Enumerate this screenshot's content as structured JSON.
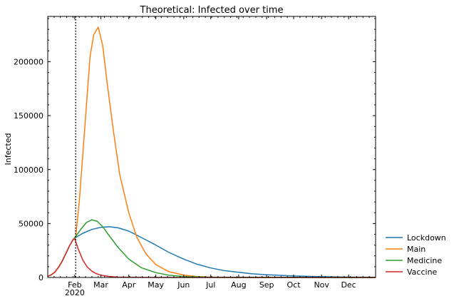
{
  "chart_data": {
    "type": "line",
    "title": "Theoretical: Infected over time",
    "xlabel": "",
    "ylabel": "Infected",
    "x_type": "date",
    "xlim": [
      "2020-01-02",
      "2020-12-31"
    ],
    "ylim": [
      0,
      242000
    ],
    "yticks": [
      0,
      50000,
      100000,
      150000,
      200000
    ],
    "ytick_labels": [
      "0",
      "50000",
      "100000",
      "150000",
      "200000"
    ],
    "xticks": [
      {
        "date": "2020-02-01",
        "label": "Feb"
      },
      {
        "date": "2020-03-01",
        "label": "Mar"
      },
      {
        "date": "2020-04-01",
        "label": "Apr"
      },
      {
        "date": "2020-05-01",
        "label": "May"
      },
      {
        "date": "2020-06-01",
        "label": "Jun"
      },
      {
        "date": "2020-07-01",
        "label": "Jul"
      },
      {
        "date": "2020-08-01",
        "label": "Aug"
      },
      {
        "date": "2020-09-01",
        "label": "Sep"
      },
      {
        "date": "2020-10-01",
        "label": "Oct"
      },
      {
        "date": "2020-11-01",
        "label": "Nov"
      },
      {
        "date": "2020-12-01",
        "label": "Dec"
      }
    ],
    "year_label": {
      "date": "2020-02-01",
      "label": "2020"
    },
    "vline": {
      "date": "2020-02-02",
      "style": "dotted"
    },
    "grid": false,
    "legend_position": "outside right, bottom",
    "series": [
      {
        "name": "Lockdown",
        "color": "#1f77b4",
        "points": [
          [
            "2020-01-02",
            1000
          ],
          [
            "2020-01-06",
            2500
          ],
          [
            "2020-01-10",
            5000
          ],
          [
            "2020-01-14",
            9500
          ],
          [
            "2020-01-18",
            15000
          ],
          [
            "2020-01-22",
            22000
          ],
          [
            "2020-01-26",
            29000
          ],
          [
            "2020-01-30",
            35000
          ],
          [
            "2020-02-02",
            37000
          ],
          [
            "2020-02-10",
            41000
          ],
          [
            "2020-02-20",
            44500
          ],
          [
            "2020-03-01",
            46500
          ],
          [
            "2020-03-10",
            47000
          ],
          [
            "2020-03-20",
            46000
          ],
          [
            "2020-04-01",
            43000
          ],
          [
            "2020-04-15",
            37000
          ],
          [
            "2020-05-01",
            30000
          ],
          [
            "2020-05-15",
            23500
          ],
          [
            "2020-06-01",
            17000
          ],
          [
            "2020-06-15",
            12500
          ],
          [
            "2020-07-01",
            8800
          ],
          [
            "2020-07-15",
            6500
          ],
          [
            "2020-08-01",
            4800
          ],
          [
            "2020-08-15",
            3500
          ],
          [
            "2020-09-01",
            2500
          ],
          [
            "2020-10-01",
            1400
          ],
          [
            "2020-11-01",
            700
          ],
          [
            "2020-12-01",
            350
          ],
          [
            "2020-12-31",
            150
          ]
        ]
      },
      {
        "name": "Main",
        "color": "#ff7f0e",
        "points": [
          [
            "2020-01-02",
            1000
          ],
          [
            "2020-01-06",
            2500
          ],
          [
            "2020-01-10",
            5000
          ],
          [
            "2020-01-14",
            9500
          ],
          [
            "2020-01-18",
            15000
          ],
          [
            "2020-01-22",
            22000
          ],
          [
            "2020-01-26",
            29000
          ],
          [
            "2020-01-30",
            35000
          ],
          [
            "2020-02-02",
            38000
          ],
          [
            "2020-02-06",
            70000
          ],
          [
            "2020-02-10",
            115000
          ],
          [
            "2020-02-14",
            160000
          ],
          [
            "2020-02-18",
            205000
          ],
          [
            "2020-02-22",
            225000
          ],
          [
            "2020-02-27",
            232000
          ],
          [
            "2020-03-03",
            215000
          ],
          [
            "2020-03-08",
            180000
          ],
          [
            "2020-03-15",
            135000
          ],
          [
            "2020-03-22",
            95000
          ],
          [
            "2020-04-01",
            60000
          ],
          [
            "2020-04-10",
            37000
          ],
          [
            "2020-04-20",
            22000
          ],
          [
            "2020-05-01",
            12000
          ],
          [
            "2020-05-15",
            5500
          ],
          [
            "2020-06-01",
            2200
          ],
          [
            "2020-06-15",
            900
          ],
          [
            "2020-07-01",
            350
          ],
          [
            "2020-08-01",
            80
          ],
          [
            "2020-12-31",
            0
          ]
        ]
      },
      {
        "name": "Medicine",
        "color": "#2ca02c",
        "points": [
          [
            "2020-01-02",
            1000
          ],
          [
            "2020-01-06",
            2500
          ],
          [
            "2020-01-10",
            5000
          ],
          [
            "2020-01-14",
            9500
          ],
          [
            "2020-01-18",
            15000
          ],
          [
            "2020-01-22",
            22000
          ],
          [
            "2020-01-26",
            29000
          ],
          [
            "2020-01-30",
            35000
          ],
          [
            "2020-02-02",
            38000
          ],
          [
            "2020-02-08",
            45000
          ],
          [
            "2020-02-14",
            51000
          ],
          [
            "2020-02-20",
            53500
          ],
          [
            "2020-02-26",
            52000
          ],
          [
            "2020-03-03",
            47000
          ],
          [
            "2020-03-10",
            39000
          ],
          [
            "2020-03-20",
            28000
          ],
          [
            "2020-04-01",
            17000
          ],
          [
            "2020-04-15",
            9000
          ],
          [
            "2020-05-01",
            4500
          ],
          [
            "2020-05-15",
            2200
          ],
          [
            "2020-06-01",
            900
          ],
          [
            "2020-07-01",
            200
          ],
          [
            "2020-08-01",
            40
          ],
          [
            "2020-12-31",
            0
          ]
        ]
      },
      {
        "name": "Vaccine",
        "color": "#d62728",
        "points": [
          [
            "2020-01-02",
            1000
          ],
          [
            "2020-01-06",
            2500
          ],
          [
            "2020-01-10",
            5000
          ],
          [
            "2020-01-14",
            9500
          ],
          [
            "2020-01-18",
            15000
          ],
          [
            "2020-01-22",
            22000
          ],
          [
            "2020-01-26",
            29000
          ],
          [
            "2020-01-30",
            35000
          ],
          [
            "2020-02-01",
            36000
          ],
          [
            "2020-02-05",
            26000
          ],
          [
            "2020-02-10",
            16000
          ],
          [
            "2020-02-15",
            9500
          ],
          [
            "2020-02-20",
            5800
          ],
          [
            "2020-02-25",
            3500
          ],
          [
            "2020-03-01",
            2100
          ],
          [
            "2020-03-10",
            900
          ],
          [
            "2020-03-20",
            350
          ],
          [
            "2020-04-01",
            120
          ],
          [
            "2020-05-01",
            20
          ],
          [
            "2020-12-31",
            0
          ]
        ]
      }
    ]
  }
}
